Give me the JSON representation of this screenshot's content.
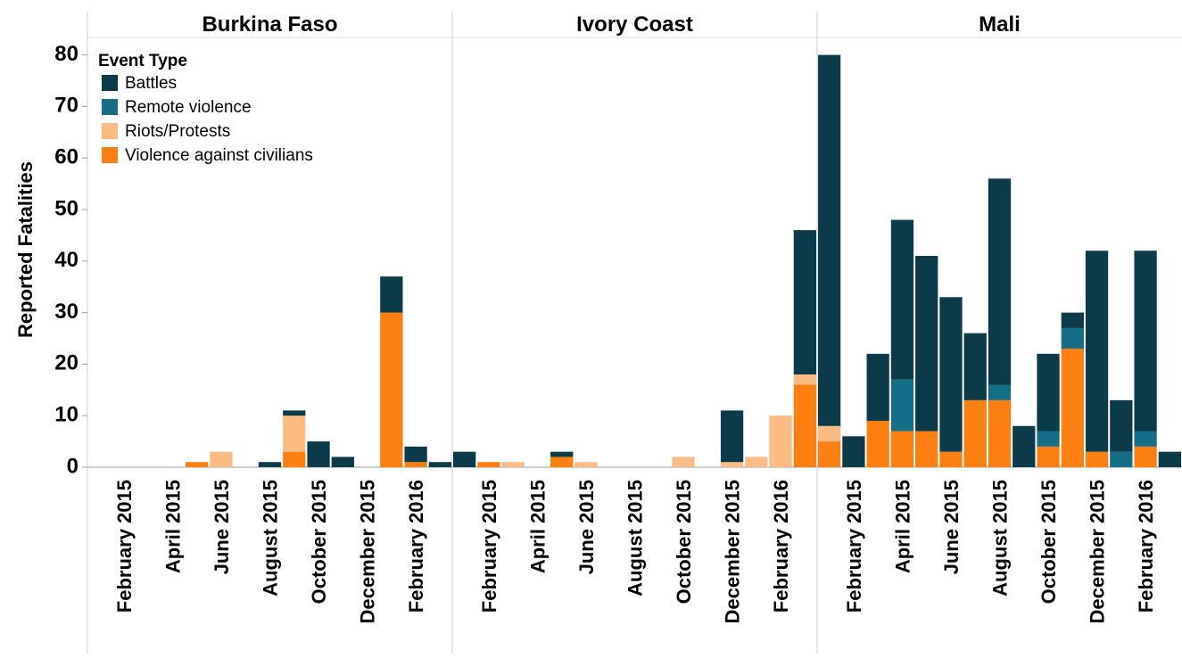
{
  "chart_data": {
    "type": "bar",
    "stacked": true,
    "ylabel": "Reported Fatalities",
    "ylim": [
      0,
      82
    ],
    "yticks": [
      0,
      10,
      20,
      30,
      40,
      50,
      60,
      70,
      80
    ],
    "x_tick_labels": [
      "February 2015",
      "April 2015",
      "June 2015",
      "August 2015",
      "October 2015",
      "December 2015",
      "February 2016"
    ],
    "months": [
      "January 2015",
      "February 2015",
      "March 2015",
      "April 2015",
      "May 2015",
      "June 2015",
      "July 2015",
      "August 2015",
      "September 2015",
      "October 2015",
      "November 2015",
      "December 2015",
      "January 2016",
      "February 2016",
      "March 2016"
    ],
    "legend": {
      "title": "Event Type",
      "position": "top-left",
      "entries": [
        "Battles",
        "Remote violence",
        "Riots/Protests",
        "Violence against civilians"
      ]
    },
    "series_colors": {
      "Battles": "#0b3a4a",
      "Remote violence": "#146e88",
      "Riots/Protests": "#fdbb84",
      "Violence against civilians": "#fd7f10"
    },
    "panels": [
      {
        "title": "Burkina Faso",
        "series": [
          {
            "name": "Battles",
            "values": [
              0,
              0,
              0,
              0,
              0,
              0,
              0,
              1,
              1,
              5,
              2,
              0,
              7,
              3,
              1
            ]
          },
          {
            "name": "Remote violence",
            "values": [
              0,
              0,
              0,
              0,
              0,
              0,
              0,
              0,
              0,
              0,
              0,
              0,
              0,
              0,
              0
            ]
          },
          {
            "name": "Riots/Protests",
            "values": [
              0,
              0,
              0,
              0,
              0,
              3,
              0,
              0,
              7,
              0,
              0,
              0,
              0,
              0,
              0
            ]
          },
          {
            "name": "Violence against civilians",
            "values": [
              0,
              0,
              0,
              0,
              1,
              0,
              0,
              0,
              3,
              0,
              0,
              0,
              30,
              1,
              0
            ]
          }
        ]
      },
      {
        "title": "Ivory Coast",
        "series": [
          {
            "name": "Battles",
            "values": [
              3,
              0,
              0,
              0,
              1,
              0,
              0,
              0,
              0,
              0,
              0,
              10,
              0,
              0,
              28
            ]
          },
          {
            "name": "Remote violence",
            "values": [
              0,
              0,
              0,
              0,
              0,
              0,
              0,
              0,
              0,
              0,
              0,
              0,
              0,
              0,
              0
            ]
          },
          {
            "name": "Riots/Protests",
            "values": [
              0,
              0,
              1,
              0,
              0,
              1,
              0,
              0,
              0,
              2,
              0,
              1,
              2,
              10,
              2
            ]
          },
          {
            "name": "Violence against civilians",
            "values": [
              0,
              1,
              0,
              0,
              2,
              0,
              0,
              0,
              0,
              0,
              0,
              0,
              0,
              0,
              16
            ]
          }
        ]
      },
      {
        "title": "Mali",
        "series": [
          {
            "name": "Battles",
            "values": [
              72,
              6,
              13,
              31,
              34,
              30,
              13,
              40,
              8,
              15,
              3,
              39,
              10,
              35,
              3
            ]
          },
          {
            "name": "Remote violence",
            "values": [
              0,
              0,
              0,
              10,
              0,
              0,
              0,
              3,
              0,
              3,
              4,
              0,
              3,
              3,
              0
            ]
          },
          {
            "name": "Riots/Protests",
            "values": [
              3,
              0,
              0,
              0,
              0,
              0,
              0,
              0,
              0,
              0,
              0,
              0,
              0,
              0,
              0
            ]
          },
          {
            "name": "Violence against civilians",
            "values": [
              5,
              0,
              9,
              7,
              7,
              3,
              13,
              13,
              0,
              4,
              23,
              3,
              0,
              4,
              0
            ]
          }
        ]
      }
    ]
  }
}
